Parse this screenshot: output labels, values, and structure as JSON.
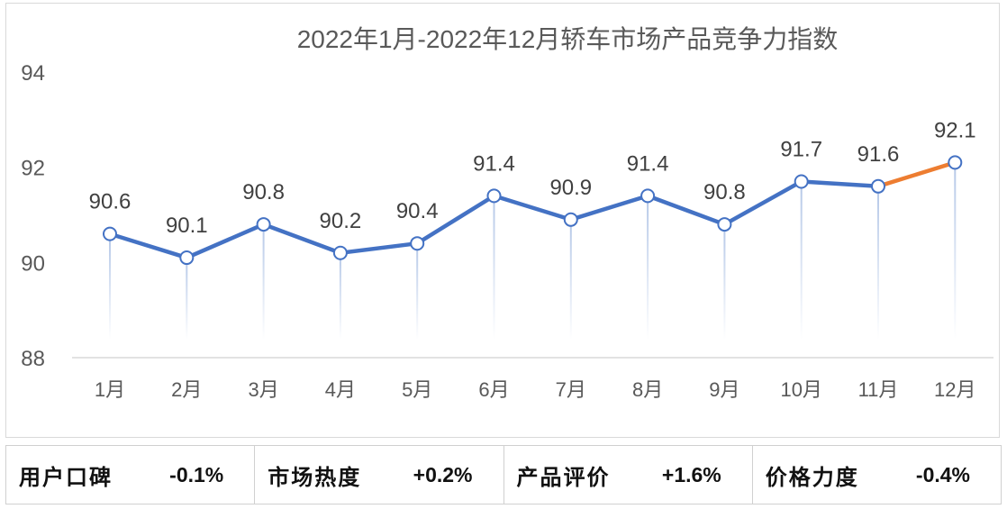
{
  "chart_data": {
    "type": "line",
    "title": "2022年1月-2022年12月轿车市场产品竞争力指数",
    "categories": [
      "1月",
      "2月",
      "3月",
      "4月",
      "5月",
      "6月",
      "7月",
      "8月",
      "9月",
      "10月",
      "11月",
      "12月"
    ],
    "values": [
      90.6,
      90.1,
      90.8,
      90.2,
      90.4,
      91.4,
      90.9,
      91.4,
      90.8,
      91.7,
      91.6,
      92.1
    ],
    "data_labels": [
      "90.6",
      "90.1",
      "90.8",
      "90.2",
      "90.4",
      "91.4",
      "90.9",
      "91.4",
      "90.8",
      "91.7",
      "91.6",
      "92.1"
    ],
    "ylim": [
      88,
      94
    ],
    "yticks": [
      "88",
      "90",
      "92",
      "94"
    ],
    "xlabel": "",
    "ylabel": "",
    "grid": false,
    "colors": {
      "line": "#4472c4",
      "last_segment": "#ed7d31",
      "drop_line": "#b4c7e7"
    }
  },
  "summary": [
    {
      "label": "用户口碑",
      "value": "-0.1%"
    },
    {
      "label": "市场热度",
      "value": "+0.2%"
    },
    {
      "label": "产品评价",
      "value": "+1.6%"
    },
    {
      "label": "价格力度",
      "value": "-0.4%"
    }
  ]
}
